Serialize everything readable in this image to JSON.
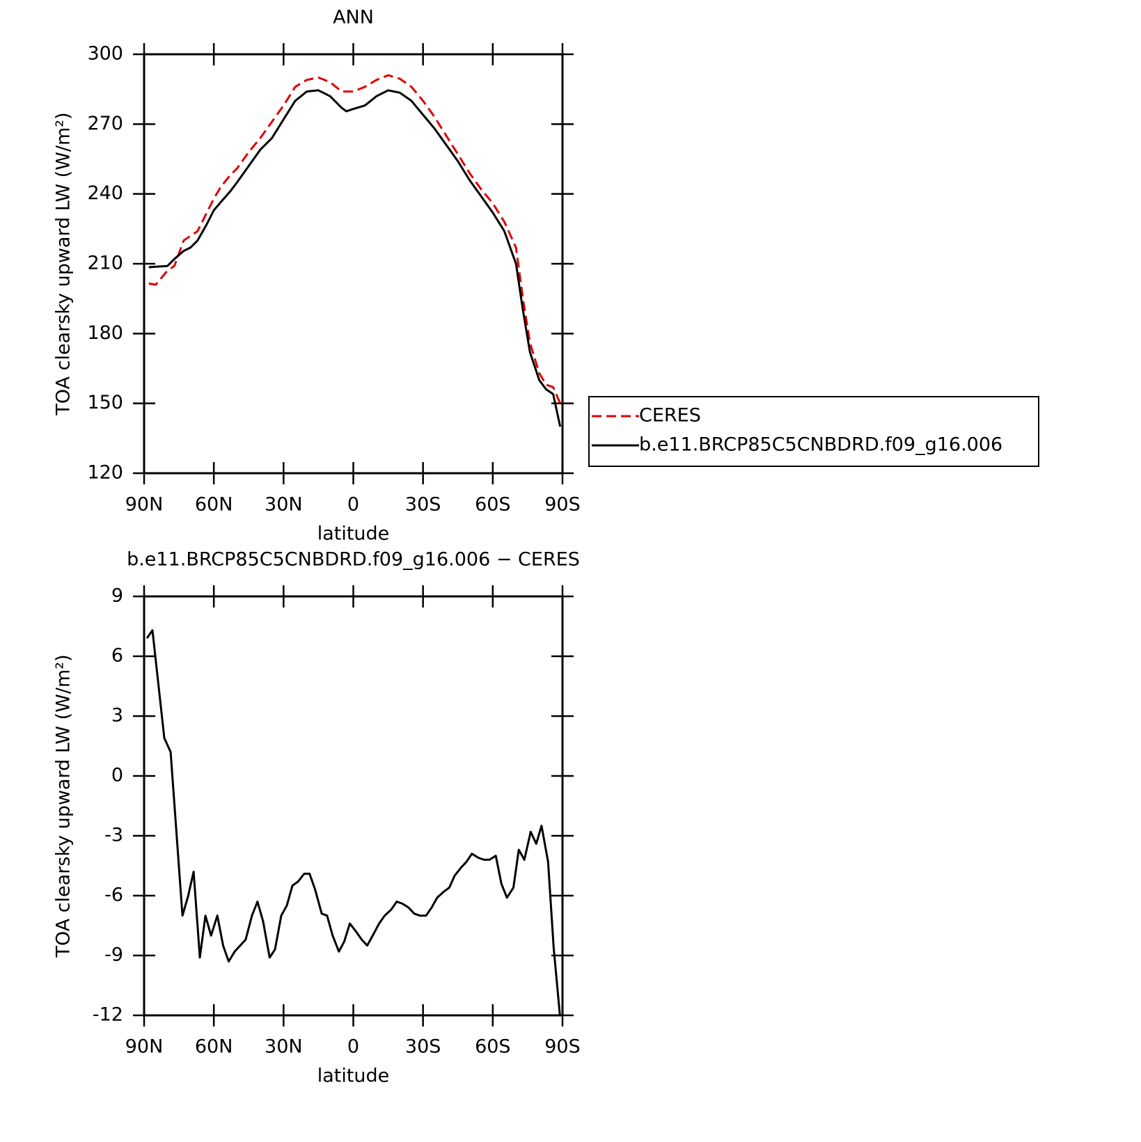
{
  "chart_data": [
    {
      "type": "line",
      "title": "ANN",
      "xlabel": "latitude",
      "ylabel": "TOA clearsky upward LW (W/m²)",
      "xlim": [
        90,
        -90
      ],
      "xticks": [
        {
          "value": 90,
          "label": "90N"
        },
        {
          "value": 60,
          "label": "60N"
        },
        {
          "value": 30,
          "label": "30N"
        },
        0,
        {
          "value": -30,
          "label": "30S"
        },
        {
          "value": -60,
          "label": "60S"
        },
        {
          "value": -90,
          "label": "90S"
        }
      ],
      "ylim": [
        120,
        300
      ],
      "yticks": [
        120,
        150,
        180,
        210,
        240,
        270,
        300
      ],
      "legend": "right",
      "x": [
        88,
        85,
        80,
        77,
        73,
        70,
        67,
        63,
        60,
        57,
        53,
        50,
        45,
        40,
        35,
        30,
        25,
        20,
        15,
        10,
        5,
        3,
        0,
        -5,
        -10,
        -15,
        -20,
        -25,
        -30,
        -35,
        -40,
        -45,
        -50,
        -55,
        -60,
        -65,
        -70,
        -73,
        -76,
        -80,
        -83,
        -86,
        -89
      ],
      "series": [
        {
          "name": "CERES",
          "color": "#e00000",
          "dashed": true,
          "values": [
            201.5,
            201,
            207,
            209,
            220,
            222,
            224,
            232,
            238,
            243,
            248,
            251,
            258,
            264,
            271,
            278,
            286,
            289,
            290,
            288,
            284,
            284,
            284,
            286,
            289,
            291,
            289.5,
            286,
            280,
            273,
            265,
            257,
            249,
            242,
            236,
            228,
            217,
            195,
            176,
            163,
            158,
            157,
            150
          ]
        },
        {
          "name": "b.e11.BRCP85C5CNBDRD.f09_g16.006",
          "color": "#000000",
          "dashed": false,
          "values": [
            208.5,
            208.7,
            209,
            212,
            215.5,
            217,
            220,
            227,
            233,
            236.5,
            241,
            245,
            252,
            259,
            264,
            272,
            280,
            284,
            284.5,
            282,
            277,
            275.5,
            276.5,
            278,
            282,
            284.5,
            283.5,
            280,
            274,
            268,
            261,
            254,
            246,
            239,
            232,
            224,
            210,
            190,
            172,
            160,
            156,
            154,
            140
          ]
        }
      ]
    },
    {
      "type": "line",
      "title": "b.e11.BRCP85C5CNBDRD.f09_g16.006 − CERES",
      "xlabel": "latitude",
      "ylabel": "TOA clearsky upward LW (W/m²)",
      "xlim": [
        90,
        -90
      ],
      "xticks": [
        {
          "value": 90,
          "label": "90N"
        },
        {
          "value": 60,
          "label": "60N"
        },
        {
          "value": 30,
          "label": "30N"
        },
        0,
        {
          "value": -30,
          "label": "30S"
        },
        {
          "value": -60,
          "label": "60S"
        },
        {
          "value": -90,
          "label": "90S"
        }
      ],
      "ylim": [
        -12,
        9
      ],
      "yticks": [
        -12,
        -9,
        -6,
        -3,
        0,
        3,
        6,
        9
      ],
      "x": [
        88.8,
        86.4,
        81.3,
        78.6,
        73.5,
        71,
        68.7,
        66,
        63.6,
        61.2,
        58.5,
        56,
        53.6,
        51,
        46.3,
        43.6,
        41.2,
        38.8,
        36,
        33.7,
        31,
        28.6,
        26.2,
        23.8,
        21.1,
        18.8,
        16.4,
        13.6,
        11.3,
        8.9,
        6.2,
        3.9,
        1.5,
        -1.2,
        -3.6,
        -6,
        -8.8,
        -11.1,
        -13.5,
        -16.3,
        -18.7,
        -21.1,
        -23.8,
        -26.2,
        -28.6,
        -31.3,
        -33.7,
        -36.1,
        -38.9,
        -41.3,
        -43.6,
        -46.3,
        -48.7,
        -51,
        -53.8,
        -56.2,
        -58.6,
        -61.3,
        -63.7,
        -66.1,
        -68.9,
        -71.2,
        -73.6,
        -76.3,
        -78.7,
        -81,
        -83.8,
        -86.2,
        -88.9
      ],
      "series": [
        {
          "color": "#000000",
          "dashed": false,
          "values": [
            6.9,
            7.3,
            1.9,
            1.2,
            -7.0,
            -6.0,
            -4.8,
            -9.1,
            -7.0,
            -8.0,
            -7.0,
            -8.5,
            -9.3,
            -8.8,
            -8.2,
            -7.0,
            -6.3,
            -7.3,
            -9.1,
            -8.7,
            -7.0,
            -6.5,
            -5.5,
            -5.3,
            -4.9,
            -4.9,
            -5.7,
            -6.9,
            -7.0,
            -8.0,
            -8.8,
            -8.3,
            -7.4,
            -7.8,
            -8.2,
            -8.5,
            -7.9,
            -7.4,
            -7.0,
            -6.7,
            -6.3,
            -6.4,
            -6.6,
            -6.9,
            -7.0,
            -7.0,
            -6.6,
            -6.1,
            -5.8,
            -5.6,
            -5.0,
            -4.6,
            -4.3,
            -3.9,
            -4.1,
            -4.2,
            -4.2,
            -4.0,
            -5.4,
            -6.1,
            -5.6,
            -3.7,
            -4.2,
            -2.8,
            -3.4,
            -2.5,
            -4.3,
            -8.6,
            -12
          ]
        }
      ]
    }
  ]
}
